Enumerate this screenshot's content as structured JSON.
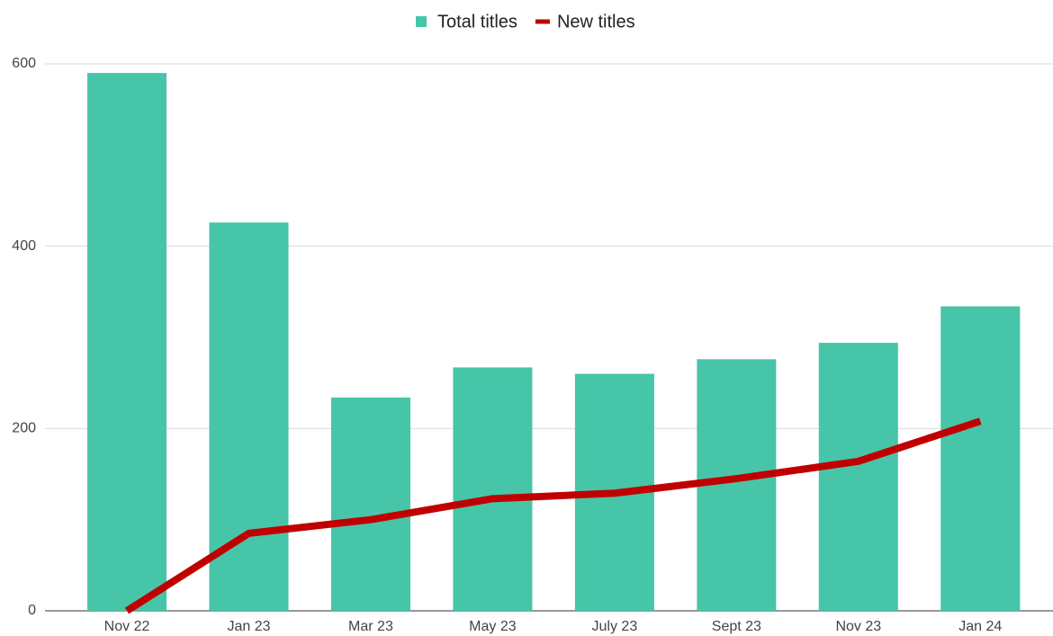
{
  "chart_data": {
    "type": "bar",
    "categories": [
      "Nov 22",
      "Jan 23",
      "Mar 23",
      "May 23",
      "July 23",
      "Sept 23",
      "Nov 23",
      "Jan 24"
    ],
    "series": [
      {
        "name": "Total titles",
        "type": "bar",
        "color": "#47c5a8",
        "values": [
          590,
          426,
          234,
          267,
          260,
          276,
          294,
          334
        ]
      },
      {
        "name": "New titles",
        "type": "line",
        "color": "#c00000",
        "values": [
          0,
          85,
          100,
          123,
          129,
          145,
          164,
          208
        ]
      }
    ],
    "ylim": [
      0,
      600
    ],
    "yticks": [
      0,
      200,
      400,
      600
    ],
    "grid": true,
    "legend": "top"
  }
}
